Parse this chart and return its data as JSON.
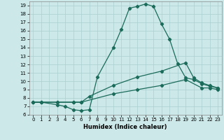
{
  "xlabel": "Humidex (Indice chaleur)",
  "xlim": [
    -0.5,
    23.5
  ],
  "ylim": [
    6,
    19.5
  ],
  "xticks": [
    0,
    1,
    2,
    3,
    4,
    5,
    6,
    7,
    8,
    9,
    10,
    11,
    12,
    13,
    14,
    15,
    16,
    17,
    18,
    19,
    20,
    21,
    22,
    23
  ],
  "yticks": [
    6,
    7,
    8,
    9,
    10,
    11,
    12,
    13,
    14,
    15,
    16,
    17,
    18,
    19
  ],
  "background_color": "#cce8e8",
  "grid_color": "#aacfcf",
  "line_color": "#1a6b5a",
  "line_width": 0.9,
  "marker": "D",
  "marker_size": 2.2,
  "curve1_x": [
    0,
    1,
    3,
    4,
    5,
    6,
    7,
    8,
    10,
    11,
    12,
    13,
    14,
    15,
    16,
    17,
    18,
    19,
    20,
    21,
    22,
    23
  ],
  "curve1_y": [
    7.5,
    7.5,
    7.2,
    7.0,
    6.6,
    6.5,
    6.6,
    10.5,
    14.0,
    16.2,
    18.7,
    18.9,
    19.2,
    18.9,
    16.8,
    15.0,
    12.1,
    10.4,
    10.2,
    9.7,
    9.4,
    9.2
  ],
  "curve2_x": [
    0,
    1,
    3,
    5,
    6,
    7,
    10,
    13,
    16,
    19,
    20,
    21,
    22,
    23
  ],
  "curve2_y": [
    7.5,
    7.5,
    7.5,
    7.5,
    7.5,
    8.2,
    9.5,
    10.5,
    11.2,
    12.2,
    10.4,
    9.8,
    9.5,
    9.2
  ],
  "curve3_x": [
    0,
    1,
    3,
    5,
    6,
    10,
    13,
    16,
    19,
    21,
    22,
    23
  ],
  "curve3_y": [
    7.5,
    7.5,
    7.5,
    7.5,
    7.5,
    8.5,
    9.0,
    9.5,
    10.2,
    9.2,
    9.2,
    9.0
  ]
}
